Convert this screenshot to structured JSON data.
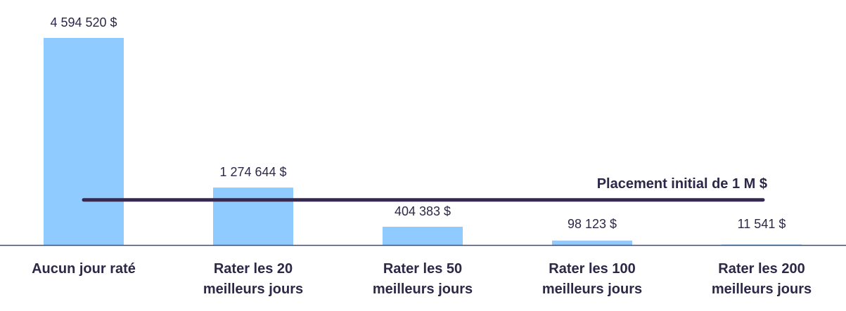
{
  "chart_data": {
    "type": "bar",
    "categories": [
      [
        "Aucun jour raté"
      ],
      [
        "Rater les 20",
        "meilleurs jours"
      ],
      [
        "Rater les 50",
        "meilleurs jours"
      ],
      [
        "Rater les 100",
        "meilleurs jours"
      ],
      [
        "Rater les 200",
        "meilleurs jours"
      ]
    ],
    "values": [
      4594520,
      1274644,
      404383,
      98123,
      11541
    ],
    "value_labels": [
      "4 594 520 $",
      "1 274 644 $",
      "404 383 $",
      "98 123 $",
      "11 541 $"
    ],
    "reference_line": {
      "value": 1000000,
      "label": "Placement initial de 1 M $",
      "color": "#35294f"
    },
    "bar_color": "#8fcbff",
    "axis_color": "#3f4a7a",
    "title": "",
    "xlabel": "",
    "ylabel": "",
    "ylim": [
      0,
      4594520
    ],
    "grid": false,
    "legend": "none"
  }
}
